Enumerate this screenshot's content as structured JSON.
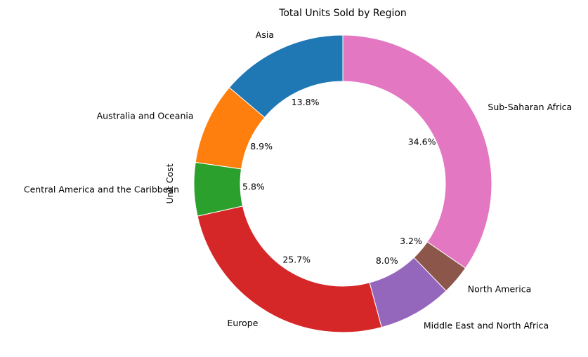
{
  "chart_data": {
    "type": "pie",
    "title": "Total Units Sold by Region",
    "ylabel": "Unit Cost",
    "donut": true,
    "start_angle_deg": 90,
    "direction": "counterclockwise",
    "categories": [
      "Asia",
      "Australia and Oceania",
      "Central America and the Caribbean",
      "Europe",
      "Middle East and North Africa",
      "North America",
      "Sub-Saharan Africa"
    ],
    "values": [
      13.8,
      8.9,
      5.8,
      25.7,
      8.0,
      3.2,
      34.6
    ],
    "percent_labels": [
      "13.8%",
      "8.9%",
      "5.8%",
      "25.7%",
      "8.0%",
      "3.2%",
      "34.6%"
    ],
    "colors": [
      "#1f77b4",
      "#ff7f0e",
      "#2ca02c",
      "#d62728",
      "#9467bd",
      "#8c564b",
      "#e377c2"
    ]
  }
}
